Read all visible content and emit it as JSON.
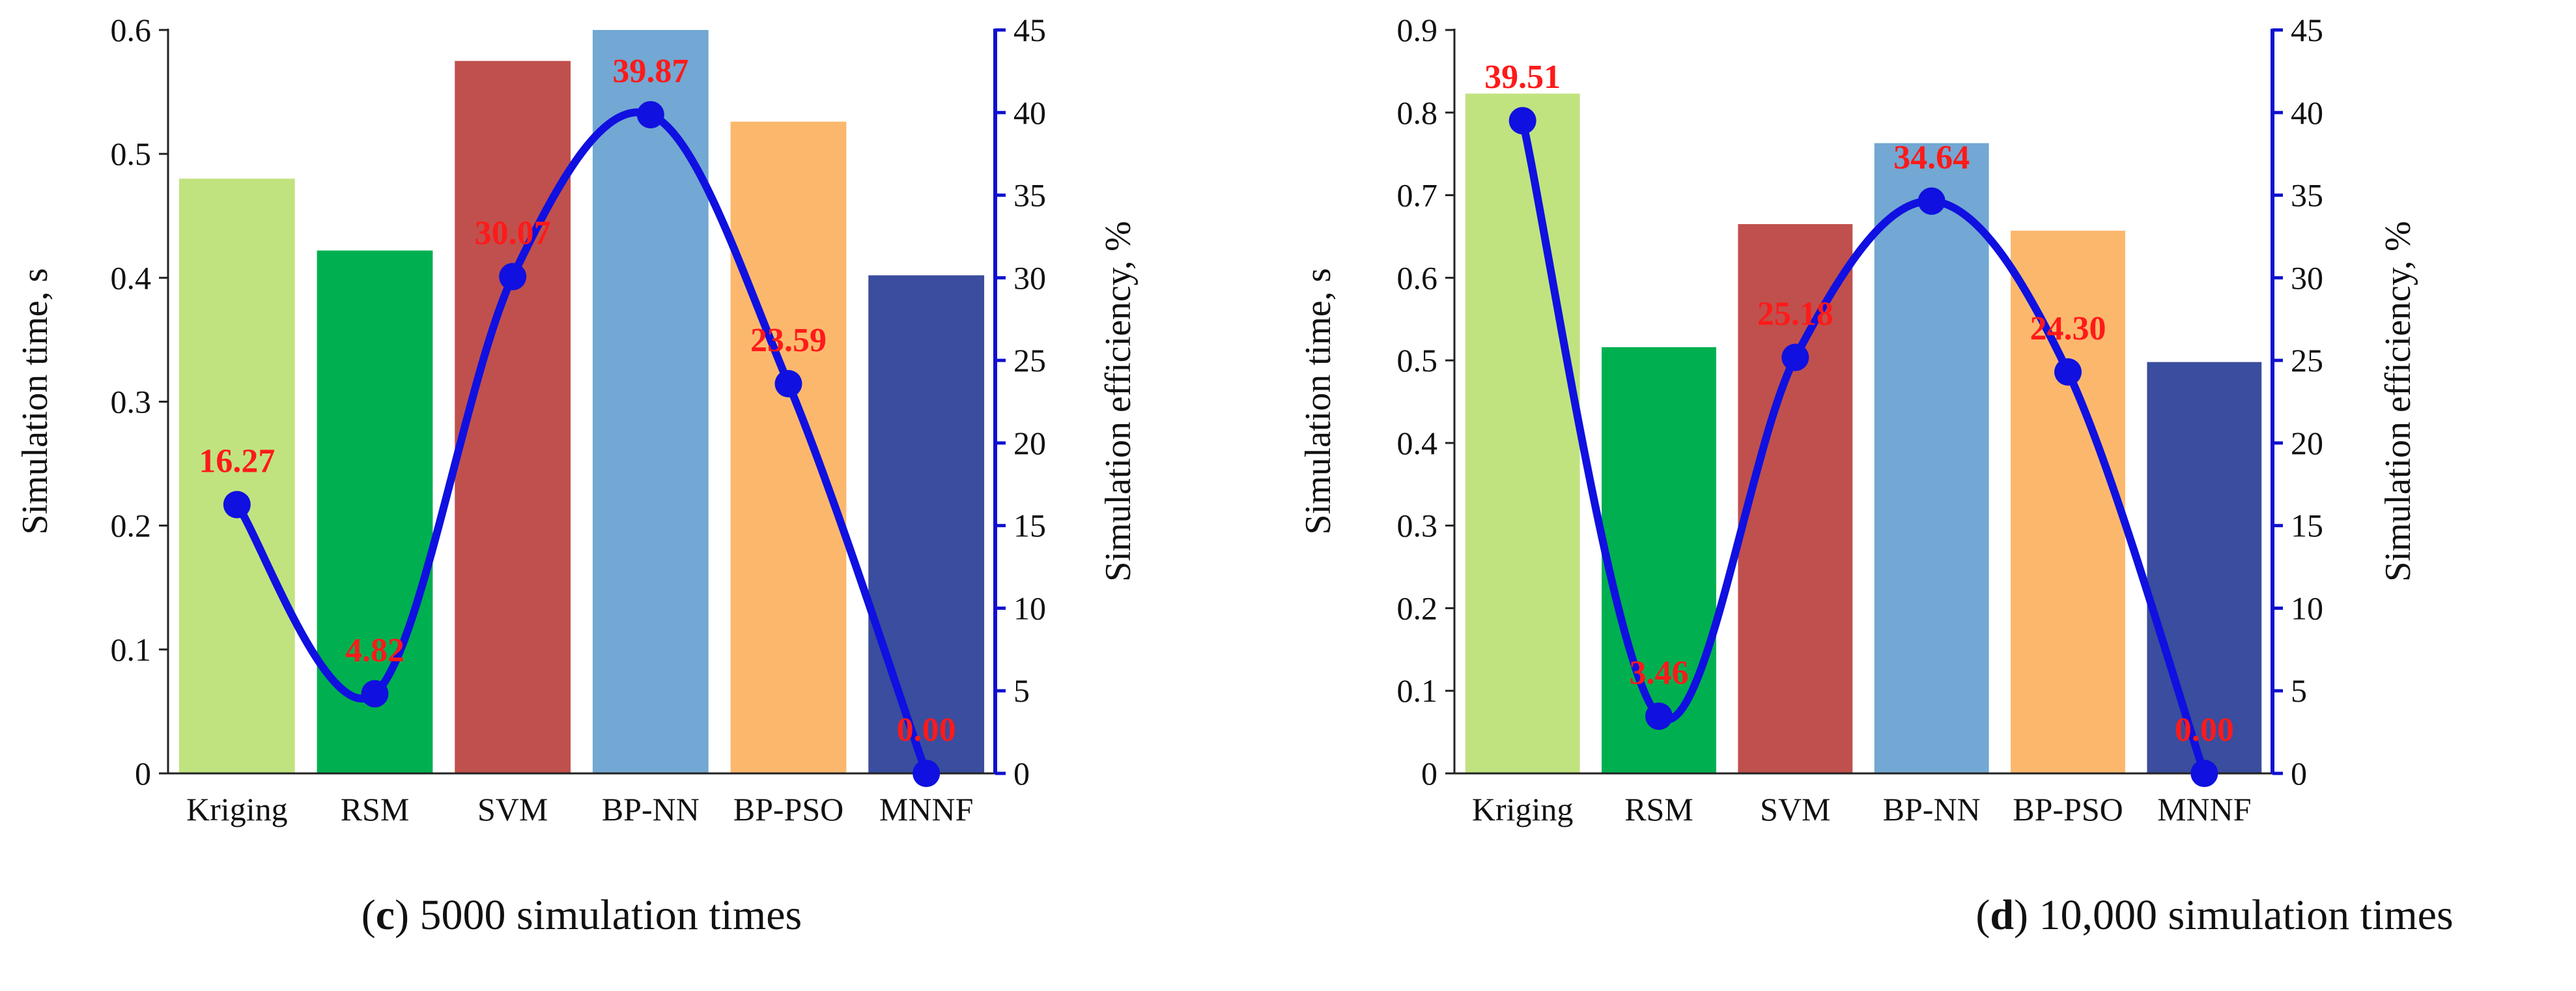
{
  "chart_data": [
    {
      "type": "bar",
      "categories": [
        "Kriging",
        "RSM",
        "SVM",
        "BP-NN",
        "BP-PSO",
        "MNNF"
      ],
      "series": [
        {
          "name": "Simulation time",
          "axis": "left",
          "values": [
            0.48,
            0.422,
            0.575,
            0.6,
            0.526,
            0.402
          ]
        },
        {
          "name": "Simulation efficiency",
          "axis": "right",
          "kind": "smooth-line",
          "values": [
            16.27,
            4.82,
            30.07,
            39.87,
            23.59,
            0.0
          ]
        }
      ],
      "data_labels": [
        "16.27",
        "4.82",
        "30.07",
        "39.87",
        "23.59",
        "0.00"
      ],
      "bar_colors": [
        "#c0e37f",
        "#00b050",
        "#c0504d",
        "#72a8d3",
        "#fbb86d",
        "#3a4d9e"
      ],
      "line_color": "#1010e0",
      "label_color": "#ff1a1a",
      "ylabel": "Simulation time, s",
      "y2label": "Simulation efficiency, %",
      "ylim": [
        0,
        0.6
      ],
      "y2lim": [
        0,
        45
      ],
      "yticks": [
        "0",
        "0.1",
        "0.2",
        "0.3",
        "0.4",
        "0.5",
        "0.6"
      ],
      "y2ticks": [
        "0",
        "5",
        "10",
        "15",
        "20",
        "25",
        "30",
        "35",
        "40",
        "45"
      ],
      "caption_letter": "c",
      "caption_text": " 5000 simulation times"
    },
    {
      "type": "bar",
      "categories": [
        "Kriging",
        "RSM",
        "SVM",
        "BP-NN",
        "BP-PSO",
        "MNNF"
      ],
      "series": [
        {
          "name": "Simulation time",
          "axis": "left",
          "values": [
            0.823,
            0.516,
            0.665,
            0.763,
            0.657,
            0.498
          ]
        },
        {
          "name": "Simulation efficiency",
          "axis": "right",
          "kind": "smooth-line",
          "values": [
            39.51,
            3.46,
            25.18,
            34.64,
            24.3,
            0.0
          ]
        }
      ],
      "data_labels": [
        "39.51",
        "3.46",
        "25.18",
        "34.64",
        "24.30",
        "0.00"
      ],
      "bar_colors": [
        "#c0e37f",
        "#00b050",
        "#c0504d",
        "#72a8d3",
        "#fbb86d",
        "#3a4d9e"
      ],
      "line_color": "#1010e0",
      "label_color": "#ff1a1a",
      "ylabel": "Simulation time, s",
      "y2label": "Simulation efficiency, %",
      "ylim": [
        0,
        0.9
      ],
      "y2lim": [
        0,
        45
      ],
      "yticks": [
        "0",
        "0.1",
        "0.2",
        "0.3",
        "0.4",
        "0.5",
        "0.6",
        "0.7",
        "0.8",
        "0.9"
      ],
      "y2ticks": [
        "0",
        "5",
        "10",
        "15",
        "20",
        "25",
        "30",
        "35",
        "40",
        "45"
      ],
      "caption_letter": "d",
      "caption_text": " 10,000 simulation times"
    }
  ]
}
